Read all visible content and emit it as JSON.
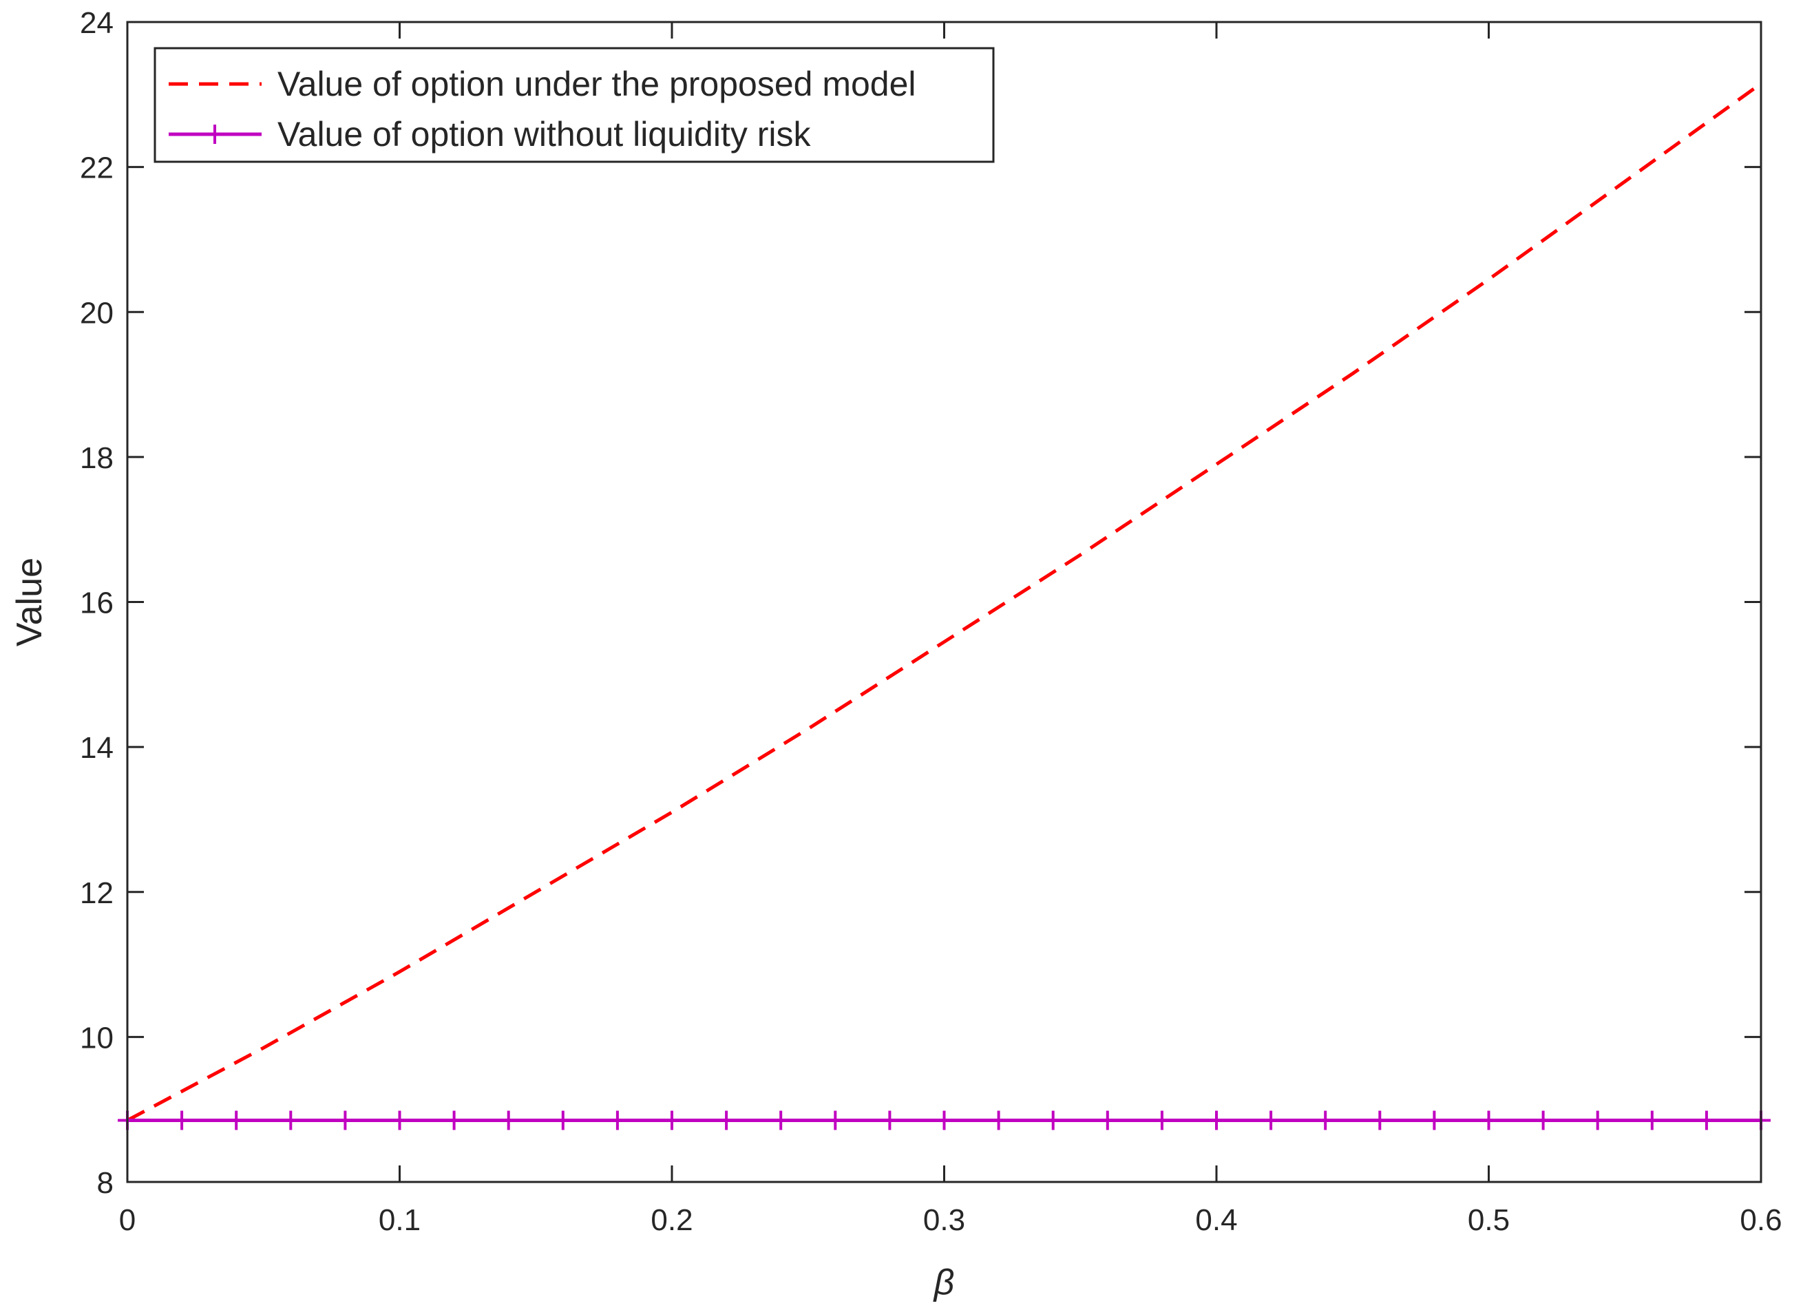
{
  "chart_data": {
    "type": "line",
    "xlabel": "β",
    "ylabel": "Value",
    "xlim": [
      0,
      0.6
    ],
    "ylim": [
      8,
      24
    ],
    "xticks": [
      0,
      0.1,
      0.2,
      0.3,
      0.4,
      0.5,
      0.6
    ],
    "xtick_labels": [
      "0",
      "0.1",
      "0.2",
      "0.3",
      "0.4",
      "0.5",
      "0.6"
    ],
    "yticks": [
      8,
      10,
      12,
      14,
      16,
      18,
      20,
      22,
      24
    ],
    "ytick_labels": [
      "8",
      "10",
      "12",
      "14",
      "16",
      "18",
      "20",
      "22",
      "24"
    ],
    "grid": false,
    "legend_position": "top-left",
    "series": [
      {
        "name": "Value of option under the proposed model",
        "color": "#ff0000",
        "style": "dashed",
        "x": [
          0,
          0.05,
          0.1,
          0.15,
          0.2,
          0.25,
          0.3,
          0.35,
          0.4,
          0.45,
          0.5,
          0.55,
          0.6
        ],
        "y": [
          8.85,
          9.85,
          10.9,
          12.0,
          13.1,
          14.25,
          15.45,
          16.65,
          17.9,
          19.15,
          20.45,
          21.8,
          23.15
        ]
      },
      {
        "name": "Value of option without liquidity risk",
        "color": "#c000c0",
        "style": "solid",
        "marker": "plus",
        "x": [
          0,
          0.02,
          0.04,
          0.06,
          0.08,
          0.1,
          0.12,
          0.14,
          0.16,
          0.18,
          0.2,
          0.22,
          0.24,
          0.26,
          0.28,
          0.3,
          0.32,
          0.34,
          0.36,
          0.38,
          0.4,
          0.42,
          0.44,
          0.46,
          0.48,
          0.5,
          0.52,
          0.54,
          0.56,
          0.58,
          0.6
        ],
        "y": [
          8.85,
          8.85,
          8.85,
          8.85,
          8.85,
          8.85,
          8.85,
          8.85,
          8.85,
          8.85,
          8.85,
          8.85,
          8.85,
          8.85,
          8.85,
          8.85,
          8.85,
          8.85,
          8.85,
          8.85,
          8.85,
          8.85,
          8.85,
          8.85,
          8.85,
          8.85,
          8.85,
          8.85,
          8.85,
          8.85,
          8.85
        ]
      }
    ]
  }
}
